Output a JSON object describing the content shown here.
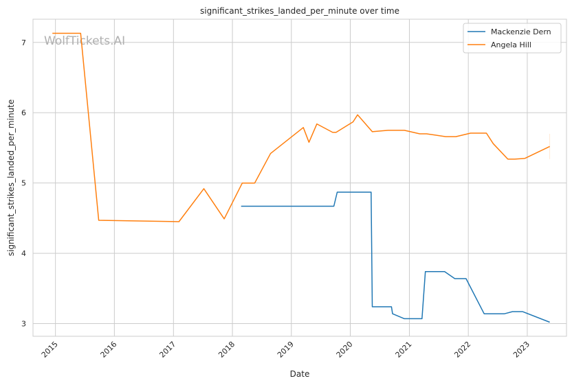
{
  "chart_data": {
    "type": "line",
    "title": "significant_strikes_landed_per_minute over time",
    "xlabel": "Date",
    "ylabel": "significant_strikes_landed_per_minute",
    "watermark": "WolfTickets.AI",
    "x_ticks": [
      "2015",
      "2016",
      "2017",
      "2018",
      "2019",
      "2020",
      "2021",
      "2022",
      "2023"
    ],
    "y_ticks": [
      3,
      4,
      5,
      6,
      7
    ],
    "xlim": [
      "2014-08-15",
      "2023-09-01"
    ],
    "ylim": [
      2.82,
      7.33
    ],
    "grid": true,
    "legend": "top-right",
    "series": [
      {
        "name": "Mackenzie Dern",
        "color": "#1f77b4",
        "points": [
          [
            "2018-02-24",
            4.67
          ],
          [
            "2019-09-21",
            4.67
          ],
          [
            "2019-10-12",
            4.87
          ],
          [
            "2020-05-09",
            4.87
          ],
          [
            "2020-05-16",
            3.24
          ],
          [
            "2020-09-12",
            3.24
          ],
          [
            "2020-09-19",
            3.14
          ],
          [
            "2020-12-01",
            3.07
          ],
          [
            "2021-03-20",
            3.07
          ],
          [
            "2021-04-10",
            3.74
          ],
          [
            "2021-08-07",
            3.74
          ],
          [
            "2021-10-09",
            3.64
          ],
          [
            "2021-12-18",
            3.64
          ],
          [
            "2022-04-09",
            3.14
          ],
          [
            "2022-08-13",
            3.14
          ],
          [
            "2022-10-01",
            3.17
          ],
          [
            "2022-12-03",
            3.17
          ],
          [
            "2023-05-20",
            3.02
          ]
        ]
      },
      {
        "name": "Angela Hill",
        "color": "#ff7f0e",
        "points": [
          [
            "2014-12-13",
            7.13
          ],
          [
            "2015-06-06",
            7.13
          ],
          [
            "2015-09-26",
            4.47
          ],
          [
            "2017-02-04",
            4.45
          ],
          [
            "2017-07-08",
            4.92
          ],
          [
            "2017-11-11",
            4.49
          ],
          [
            "2018-03-03",
            5.0
          ],
          [
            "2018-05-19",
            5.0
          ],
          [
            "2018-08-25",
            5.42
          ],
          [
            "2019-03-16",
            5.79
          ],
          [
            "2019-04-20",
            5.58
          ],
          [
            "2019-06-08",
            5.84
          ],
          [
            "2019-09-14",
            5.72
          ],
          [
            "2019-10-05",
            5.72
          ],
          [
            "2020-01-18",
            5.87
          ],
          [
            "2020-02-15",
            5.97
          ],
          [
            "2020-05-16",
            5.73
          ],
          [
            "2020-08-22",
            5.75
          ],
          [
            "2020-12-01",
            5.75
          ],
          [
            "2021-03-06",
            5.7
          ],
          [
            "2021-04-17",
            5.7
          ],
          [
            "2021-08-14",
            5.66
          ],
          [
            "2021-10-16",
            5.66
          ],
          [
            "2022-01-15",
            5.71
          ],
          [
            "2022-04-23",
            5.71
          ],
          [
            "2022-06-04",
            5.56
          ],
          [
            "2022-09-03",
            5.34
          ],
          [
            "2022-10-15",
            5.34
          ],
          [
            "2022-12-17",
            5.35
          ],
          [
            "2023-05-20",
            5.52
          ]
        ]
      }
    ]
  }
}
